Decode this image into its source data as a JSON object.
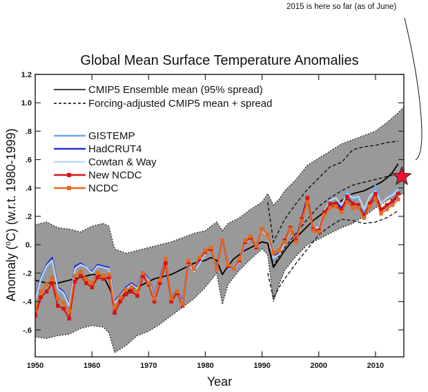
{
  "annotation": "2015 is here so far (as of June)",
  "chart_data": {
    "type": "line",
    "title": "Global Mean Surface Temperature Anomalies",
    "xlabel": "Year",
    "ylabel": "Anomaly (°C) (w.r.t. 1980-1999)",
    "ylabel_parts": {
      "pre": "Anomaly (",
      "sup": "o",
      "post": "C) (w.r.t. 1980-1999)"
    },
    "xlim": [
      1950,
      2015
    ],
    "ylim": [
      -0.79,
      1.2
    ],
    "xticks": [
      1950,
      1960,
      1970,
      1980,
      1990,
      2000,
      2010
    ],
    "xtick_labels": [
      "1950",
      "1960",
      "1970",
      "1980",
      "1990",
      "2000",
      "2010"
    ],
    "yticks": [
      1.2,
      1.0,
      0.8,
      0.6,
      0.4,
      0.2,
      0.0,
      -0.2,
      -0.4,
      -0.6
    ],
    "ytick_labels": [
      "1.2",
      "1.0",
      ".8",
      ".6",
      ".4",
      ".2",
      "0.",
      "-.2",
      "-.4",
      "-.6"
    ],
    "grid": false,
    "legend_placement": "top-left",
    "legend": [
      {
        "name": "CMIP5 Ensemble mean (95% spread)",
        "style": "solid",
        "color": "#000000"
      },
      {
        "name": "Forcing-adjusted CMIP5 mean + spread",
        "style": "dashed",
        "color": "#000000"
      },
      {
        "name": "GISTEMP",
        "style": "solid",
        "color": "#6aa6ef"
      },
      {
        "name": "HadCRUT4",
        "style": "solid",
        "color": "#2b2fd0"
      },
      {
        "name": "Cowtan & Way",
        "style": "solid",
        "color": "#b9d9f5"
      },
      {
        "name": "New NCDC",
        "style": "solid-square",
        "color": "#d8150f"
      },
      {
        "name": "NCDC",
        "style": "solid-square",
        "color": "#e8681c"
      }
    ],
    "model_spread": {
      "name": "CMIP5 95% spread",
      "fill": "#999999",
      "x": [
        1950,
        1952,
        1954,
        1956,
        1958,
        1960,
        1962,
        1963,
        1964,
        1966,
        1968,
        1970,
        1972,
        1974,
        1976,
        1978,
        1980,
        1982,
        1983,
        1984,
        1986,
        1988,
        1990,
        1991,
        1992,
        1993,
        1994,
        1996,
        1998,
        2000,
        2002,
        2004,
        2006,
        2008,
        2010,
        2012,
        2014,
        2015
      ],
      "upper": [
        0.14,
        0.16,
        0.12,
        0.11,
        0.09,
        0.13,
        0.15,
        0.13,
        -0.03,
        -0.06,
        -0.04,
        -0.02,
        0.0,
        0.02,
        0.05,
        0.08,
        0.1,
        0.16,
        0.1,
        0.15,
        0.19,
        0.25,
        0.3,
        0.36,
        0.28,
        0.32,
        0.38,
        0.46,
        0.56,
        0.61,
        0.66,
        0.71,
        0.74,
        0.77,
        0.8,
        0.86,
        0.93,
        0.97
      ],
      "lower": [
        -0.65,
        -0.66,
        -0.64,
        -0.63,
        -0.59,
        -0.57,
        -0.58,
        -0.62,
        -0.76,
        -0.71,
        -0.64,
        -0.61,
        -0.56,
        -0.5,
        -0.44,
        -0.38,
        -0.3,
        -0.2,
        -0.42,
        -0.28,
        -0.18,
        -0.1,
        -0.03,
        -0.07,
        -0.4,
        -0.28,
        -0.18,
        -0.08,
        0.0,
        0.04,
        0.08,
        0.12,
        0.15,
        0.2,
        0.26,
        0.31,
        0.35,
        0.36
      ]
    },
    "forcing_adjusted": {
      "x": [
        1991,
        1992,
        1993,
        1994,
        1996,
        1998,
        2000,
        2002,
        2004,
        2006,
        2008,
        2010,
        2012,
        2014
      ],
      "mean": [
        0.05,
        -0.15,
        -0.08,
        -0.02,
        0.08,
        0.18,
        0.27,
        0.33,
        0.38,
        0.42,
        0.44,
        0.46,
        0.48,
        0.5
      ],
      "upper": [
        0.3,
        0.02,
        0.1,
        0.18,
        0.29,
        0.39,
        0.47,
        0.55,
        0.58,
        0.67,
        0.69,
        0.7,
        0.72,
        0.73
      ],
      "lower": [
        -0.2,
        -0.38,
        -0.3,
        -0.24,
        -0.13,
        -0.03,
        0.07,
        0.13,
        0.18,
        0.17,
        0.15,
        0.16,
        0.19,
        0.24
      ]
    },
    "x": [
      1950,
      1951,
      1952,
      1953,
      1954,
      1955,
      1956,
      1957,
      1958,
      1959,
      1960,
      1961,
      1962,
      1963,
      1964,
      1965,
      1966,
      1967,
      1968,
      1969,
      1970,
      1971,
      1972,
      1973,
      1974,
      1975,
      1976,
      1977,
      1978,
      1979,
      1980,
      1981,
      1982,
      1983,
      1984,
      1985,
      1986,
      1987,
      1988,
      1989,
      1990,
      1991,
      1992,
      1993,
      1994,
      1995,
      1996,
      1997,
      1998,
      1999,
      2000,
      2001,
      2002,
      2003,
      2004,
      2005,
      2006,
      2007,
      2008,
      2009,
      2010,
      2011,
      2012,
      2013,
      2014
    ],
    "series": [
      {
        "name": "CMIP5 Ensemble mean",
        "color": "#000000",
        "values": [
          -0.25,
          -0.26,
          -0.27,
          -0.27,
          -0.27,
          -0.26,
          -0.25,
          -0.24,
          -0.23,
          -0.22,
          -0.21,
          -0.21,
          -0.22,
          -0.3,
          -0.39,
          -0.37,
          -0.34,
          -0.31,
          -0.3,
          -0.28,
          -0.26,
          -0.24,
          -0.23,
          -0.22,
          -0.21,
          -0.19,
          -0.17,
          -0.15,
          -0.13,
          -0.12,
          -0.11,
          -0.09,
          -0.11,
          -0.21,
          -0.15,
          -0.1,
          -0.07,
          -0.04,
          -0.02,
          0.0,
          0.02,
          0.01,
          -0.16,
          -0.1,
          -0.04,
          0.01,
          0.05,
          0.09,
          0.13,
          0.17,
          0.2,
          0.23,
          0.26,
          0.28,
          0.31,
          0.34,
          0.36,
          0.37,
          0.38,
          0.4,
          0.42,
          0.44,
          0.47,
          0.51,
          0.57
        ]
      },
      {
        "name": "GISTEMP",
        "color": "#6aa6ef",
        "values": [
          -0.4,
          -0.25,
          -0.16,
          -0.1,
          -0.32,
          -0.35,
          -0.44,
          -0.16,
          -0.15,
          -0.15,
          -0.2,
          -0.14,
          -0.16,
          -0.17,
          -0.41,
          -0.37,
          -0.31,
          -0.28,
          -0.31,
          -0.21,
          -0.23,
          -0.37,
          -0.24,
          -0.12,
          -0.39,
          -0.33,
          -0.41,
          -0.12,
          -0.19,
          -0.14,
          -0.06,
          -0.02,
          -0.17,
          0.03,
          -0.16,
          -0.19,
          -0.13,
          0.0,
          0.07,
          -0.02,
          0.1,
          0.06,
          -0.1,
          -0.06,
          0.01,
          0.11,
          0.03,
          0.18,
          0.3,
          0.11,
          0.12,
          0.24,
          0.32,
          0.33,
          0.27,
          0.38,
          0.32,
          0.33,
          0.24,
          0.34,
          0.42,
          0.29,
          0.33,
          0.36,
          0.4
        ]
      },
      {
        "name": "HadCRUT4",
        "color": "#2b2fd0",
        "values": [
          -0.38,
          -0.23,
          -0.14,
          -0.09,
          -0.3,
          -0.33,
          -0.42,
          -0.15,
          -0.13,
          -0.16,
          -0.19,
          -0.14,
          -0.15,
          -0.16,
          -0.4,
          -0.35,
          -0.3,
          -0.27,
          -0.3,
          -0.19,
          -0.24,
          -0.36,
          -0.23,
          -0.1,
          -0.38,
          -0.32,
          -0.4,
          -0.11,
          -0.18,
          -0.11,
          -0.05,
          -0.03,
          -0.16,
          0.04,
          -0.14,
          -0.17,
          -0.11,
          0.02,
          0.06,
          -0.01,
          0.11,
          0.07,
          -0.08,
          -0.06,
          0.02,
          0.12,
          0.03,
          0.19,
          0.34,
          0.1,
          0.09,
          0.22,
          0.28,
          0.3,
          0.26,
          0.32,
          0.29,
          0.28,
          0.21,
          0.28,
          0.33,
          0.24,
          0.27,
          0.3,
          0.34
        ]
      },
      {
        "name": "Cowtan & Way",
        "color": "#b9d9f5",
        "values": [
          -0.39,
          -0.24,
          -0.15,
          -0.11,
          -0.31,
          -0.34,
          -0.43,
          -0.17,
          -0.14,
          -0.16,
          -0.2,
          -0.15,
          -0.16,
          -0.17,
          -0.41,
          -0.36,
          -0.31,
          -0.28,
          -0.31,
          -0.2,
          -0.25,
          -0.37,
          -0.24,
          -0.11,
          -0.39,
          -0.33,
          -0.41,
          -0.12,
          -0.19,
          -0.13,
          -0.06,
          -0.03,
          -0.17,
          0.03,
          -0.15,
          -0.18,
          -0.12,
          0.01,
          0.05,
          -0.02,
          0.1,
          0.06,
          -0.09,
          -0.07,
          0.01,
          0.11,
          0.02,
          0.18,
          0.32,
          0.12,
          0.12,
          0.24,
          0.31,
          0.33,
          0.28,
          0.36,
          0.33,
          0.34,
          0.25,
          0.34,
          0.38,
          0.29,
          0.33,
          0.35,
          0.39
        ]
      },
      {
        "name": "New NCDC",
        "color": "#d8150f",
        "values": [
          -0.5,
          -0.37,
          -0.33,
          -0.27,
          -0.43,
          -0.45,
          -0.52,
          -0.26,
          -0.22,
          -0.27,
          -0.3,
          -0.23,
          -0.24,
          -0.23,
          -0.48,
          -0.4,
          -0.35,
          -0.33,
          -0.36,
          -0.22,
          -0.28,
          -0.4,
          -0.27,
          -0.13,
          -0.4,
          -0.34,
          -0.43,
          -0.12,
          -0.17,
          -0.1,
          -0.05,
          -0.03,
          -0.17,
          0.03,
          -0.15,
          -0.17,
          -0.11,
          0.02,
          0.05,
          -0.02,
          0.11,
          0.07,
          -0.06,
          -0.04,
          0.03,
          0.12,
          0.03,
          0.18,
          0.33,
          0.11,
          0.1,
          0.23,
          0.29,
          0.29,
          0.24,
          0.34,
          0.29,
          0.28,
          0.2,
          0.29,
          0.36,
          0.25,
          0.28,
          0.31,
          0.36
        ]
      },
      {
        "name": "NCDC",
        "color": "#e8681c",
        "values": [
          -0.46,
          -0.33,
          -0.28,
          -0.23,
          -0.38,
          -0.41,
          -0.47,
          -0.22,
          -0.19,
          -0.24,
          -0.27,
          -0.2,
          -0.22,
          -0.21,
          -0.44,
          -0.37,
          -0.32,
          -0.3,
          -0.33,
          -0.2,
          -0.27,
          -0.38,
          -0.25,
          -0.1,
          -0.38,
          -0.33,
          -0.42,
          -0.11,
          -0.17,
          -0.09,
          -0.04,
          -0.02,
          -0.17,
          0.03,
          -0.14,
          -0.17,
          -0.1,
          0.03,
          0.06,
          -0.01,
          0.11,
          0.07,
          -0.06,
          -0.04,
          0.02,
          0.11,
          0.02,
          0.17,
          0.3,
          0.1,
          0.09,
          0.21,
          0.26,
          0.27,
          0.23,
          0.3,
          0.26,
          0.26,
          0.19,
          0.27,
          0.32,
          0.22,
          0.25,
          0.28,
          0.32
        ]
      }
    ],
    "marker_2015": {
      "year": 2015,
      "value": 0.48,
      "shape": "star",
      "color": "#f0102a",
      "label": "2015 is here so far (as of June)"
    }
  }
}
